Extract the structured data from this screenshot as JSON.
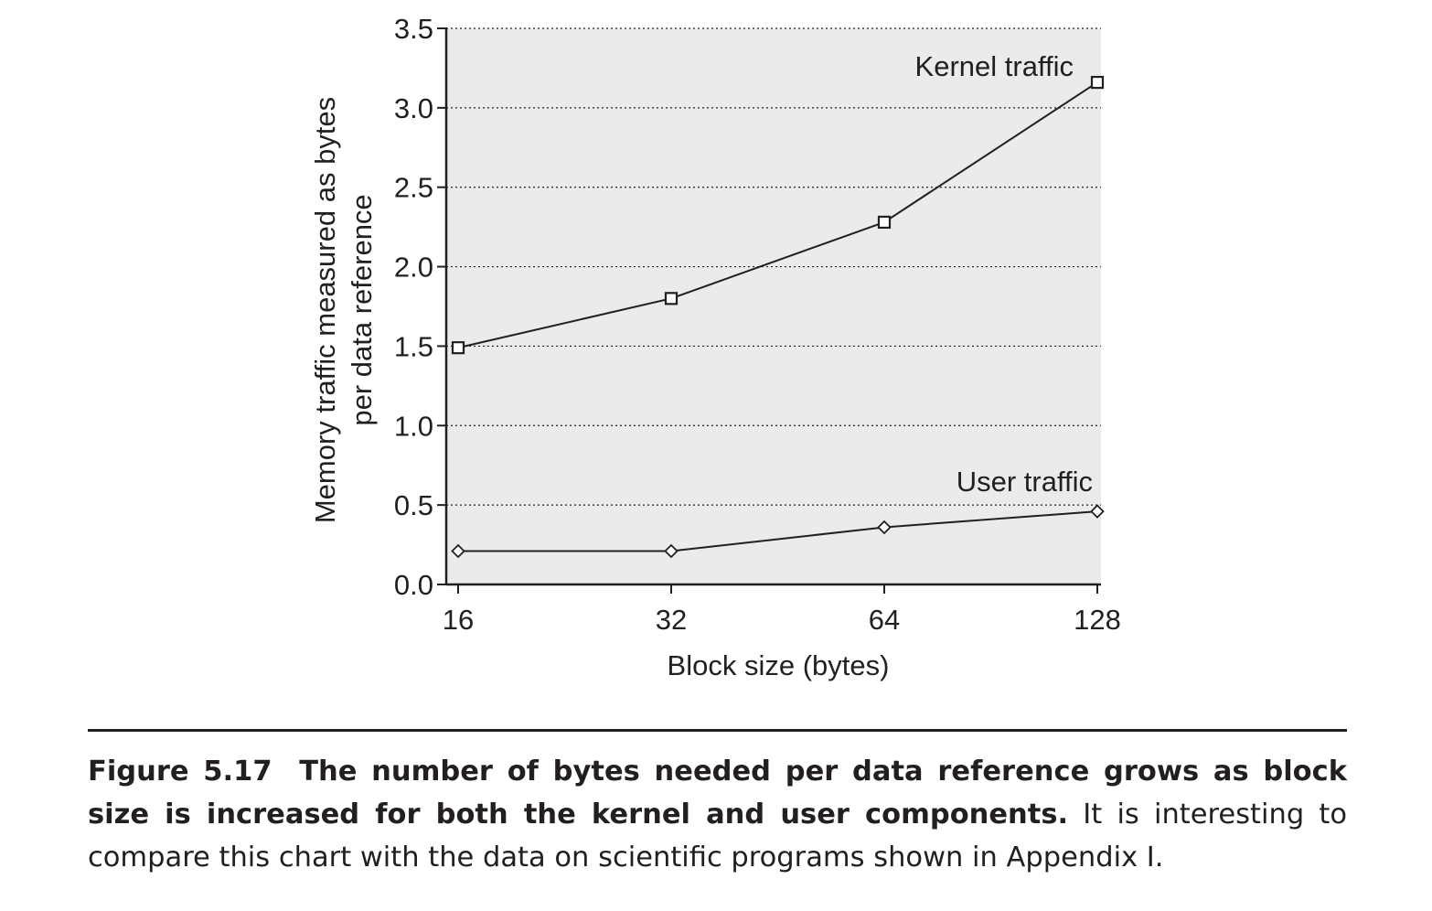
{
  "chart_data": {
    "type": "line",
    "x": [
      "16",
      "32",
      "64",
      "128"
    ],
    "xlabel": "Block size (bytes)",
    "ylabel_lines": [
      "Memory traffic measured as bytes",
      "per data reference"
    ],
    "ylim": [
      0,
      3.5
    ],
    "yticks": [
      "0.0",
      "0.5",
      "1.0",
      "1.5",
      "2.0",
      "2.5",
      "3.0",
      "3.5"
    ],
    "ytick_values": [
      0,
      0.5,
      1.0,
      1.5,
      2.0,
      2.5,
      3.0,
      3.5
    ],
    "x_scale": "log2",
    "grid": "horizontal dotted",
    "plot_background": "#ebebeb",
    "series": [
      {
        "name": "Kernel traffic",
        "marker": "square",
        "values": [
          1.49,
          1.8,
          2.28,
          3.16
        ]
      },
      {
        "name": "User traffic",
        "marker": "diamond",
        "values": [
          0.21,
          0.21,
          0.36,
          0.46
        ]
      }
    ]
  },
  "caption": {
    "number": "Figure 5.17",
    "title": "The number of bytes needed per data reference grows as block size is increased for both the kernel and user components.",
    "body": "It is interesting to compare this chart with the data on scientific programs shown in Appendix I."
  }
}
